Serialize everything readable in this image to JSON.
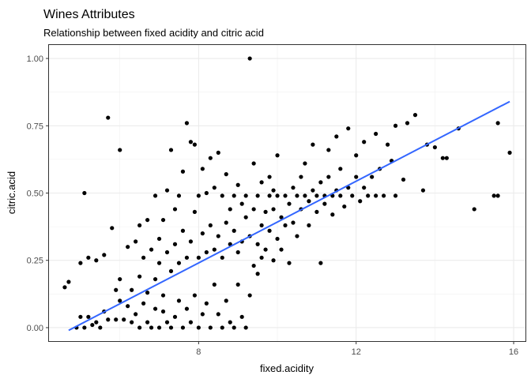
{
  "chart_data": {
    "type": "scatter",
    "title": "Wines Attributes",
    "subtitle": "Relationship between fixed acidity and citric acid",
    "xlabel": "fixed.acidity",
    "ylabel": "citric.acid",
    "xlim": [
      4.2,
      16.3
    ],
    "ylim": [
      -0.05,
      1.05
    ],
    "x_ticks": [
      8,
      12,
      16
    ],
    "y_ticks": [
      0.0,
      0.25,
      0.5,
      0.75,
      1.0
    ],
    "x_tick_labels": [
      "8",
      "12",
      "16"
    ],
    "y_tick_labels": [
      "0.00",
      "0.25",
      "0.50",
      "0.75",
      "1.00"
    ],
    "grid": true,
    "point_color": "#000000",
    "trend_color": "#3366ff",
    "trend_line": {
      "x": [
        4.7,
        15.9
      ],
      "y": [
        -0.01,
        0.84
      ]
    },
    "points": [
      [
        4.6,
        0.15
      ],
      [
        4.7,
        0.17
      ],
      [
        4.9,
        0.0
      ],
      [
        5.0,
        0.04
      ],
      [
        5.0,
        0.24
      ],
      [
        5.1,
        0.5
      ],
      [
        5.1,
        0.0
      ],
      [
        5.2,
        0.04
      ],
      [
        5.2,
        0.26
      ],
      [
        5.3,
        0.01
      ],
      [
        5.4,
        0.02
      ],
      [
        5.4,
        0.25
      ],
      [
        5.5,
        0.0
      ],
      [
        5.6,
        0.27
      ],
      [
        5.6,
        0.06
      ],
      [
        5.7,
        0.78
      ],
      [
        5.7,
        0.03
      ],
      [
        5.8,
        0.37
      ],
      [
        5.9,
        0.03
      ],
      [
        5.9,
        0.14
      ],
      [
        6.0,
        0.66
      ],
      [
        6.0,
        0.1
      ],
      [
        6.0,
        0.18
      ],
      [
        6.1,
        0.03
      ],
      [
        6.2,
        0.08
      ],
      [
        6.2,
        0.3
      ],
      [
        6.3,
        0.02
      ],
      [
        6.3,
        0.14
      ],
      [
        6.4,
        0.05
      ],
      [
        6.4,
        0.32
      ],
      [
        6.5,
        0.0
      ],
      [
        6.5,
        0.19
      ],
      [
        6.5,
        0.38
      ],
      [
        6.6,
        0.09
      ],
      [
        6.6,
        0.26
      ],
      [
        6.7,
        0.02
      ],
      [
        6.7,
        0.13
      ],
      [
        6.7,
        0.4
      ],
      [
        6.8,
        0.0
      ],
      [
        6.8,
        0.29
      ],
      [
        6.9,
        0.07
      ],
      [
        6.9,
        0.18
      ],
      [
        6.9,
        0.49
      ],
      [
        7.0,
        0.0
      ],
      [
        7.0,
        0.24
      ],
      [
        7.0,
        0.33
      ],
      [
        7.1,
        0.06
      ],
      [
        7.1,
        0.12
      ],
      [
        7.1,
        0.4
      ],
      [
        7.2,
        0.02
      ],
      [
        7.2,
        0.28
      ],
      [
        7.2,
        0.51
      ],
      [
        7.3,
        0.0
      ],
      [
        7.3,
        0.21
      ],
      [
        7.3,
        0.66
      ],
      [
        7.4,
        0.04
      ],
      [
        7.4,
        0.31
      ],
      [
        7.4,
        0.44
      ],
      [
        7.5,
        0.1
      ],
      [
        7.5,
        0.24
      ],
      [
        7.5,
        0.49
      ],
      [
        7.6,
        0.0
      ],
      [
        7.6,
        0.36
      ],
      [
        7.6,
        0.58
      ],
      [
        7.7,
        0.07
      ],
      [
        7.7,
        0.26
      ],
      [
        7.7,
        0.76
      ],
      [
        7.8,
        0.02
      ],
      [
        7.8,
        0.32
      ],
      [
        7.8,
        0.69
      ],
      [
        7.9,
        0.12
      ],
      [
        7.9,
        0.43
      ],
      [
        7.9,
        0.68
      ],
      [
        8.0,
        0.0
      ],
      [
        8.0,
        0.26
      ],
      [
        8.0,
        0.49
      ],
      [
        8.1,
        0.05
      ],
      [
        8.1,
        0.35
      ],
      [
        8.1,
        0.59
      ],
      [
        8.2,
        0.09
      ],
      [
        8.2,
        0.28
      ],
      [
        8.2,
        0.5
      ],
      [
        8.3,
        0.0
      ],
      [
        8.3,
        0.38
      ],
      [
        8.3,
        0.63
      ],
      [
        8.4,
        0.16
      ],
      [
        8.4,
        0.29
      ],
      [
        8.4,
        0.52
      ],
      [
        8.5,
        0.05
      ],
      [
        8.5,
        0.34
      ],
      [
        8.5,
        0.65
      ],
      [
        8.6,
        0.0
      ],
      [
        8.6,
        0.26
      ],
      [
        8.6,
        0.49
      ],
      [
        8.7,
        0.1
      ],
      [
        8.7,
        0.39
      ],
      [
        8.7,
        0.57
      ],
      [
        8.8,
        0.02
      ],
      [
        8.8,
        0.31
      ],
      [
        8.8,
        0.44
      ],
      [
        8.9,
        0.0
      ],
      [
        8.9,
        0.36
      ],
      [
        8.9,
        0.49
      ],
      [
        9.0,
        0.16
      ],
      [
        9.0,
        0.28
      ],
      [
        9.0,
        0.53
      ],
      [
        9.1,
        0.04
      ],
      [
        9.1,
        0.32
      ],
      [
        9.1,
        0.46
      ],
      [
        9.2,
        0.0
      ],
      [
        9.2,
        0.41
      ],
      [
        9.2,
        0.49
      ],
      [
        9.3,
        0.12
      ],
      [
        9.3,
        0.34
      ],
      [
        9.3,
        1.0
      ],
      [
        9.4,
        0.23
      ],
      [
        9.4,
        0.44
      ],
      [
        9.4,
        0.61
      ],
      [
        9.5,
        0.31
      ],
      [
        9.5,
        0.49
      ],
      [
        9.5,
        0.2
      ],
      [
        9.6,
        0.38
      ],
      [
        9.6,
        0.54
      ],
      [
        9.6,
        0.26
      ],
      [
        9.7,
        0.43
      ],
      [
        9.7,
        0.29
      ],
      [
        9.8,
        0.49
      ],
      [
        9.8,
        0.36
      ],
      [
        9.8,
        0.56
      ],
      [
        9.9,
        0.25
      ],
      [
        9.9,
        0.44
      ],
      [
        9.9,
        0.51
      ],
      [
        10.0,
        0.33
      ],
      [
        10.0,
        0.49
      ],
      [
        10.0,
        0.64
      ],
      [
        10.1,
        0.41
      ],
      [
        10.1,
        0.29
      ],
      [
        10.2,
        0.49
      ],
      [
        10.2,
        0.38
      ],
      [
        10.3,
        0.24
      ],
      [
        10.3,
        0.46
      ],
      [
        10.4,
        0.52
      ],
      [
        10.4,
        0.39
      ],
      [
        10.5,
        0.49
      ],
      [
        10.5,
        0.34
      ],
      [
        10.6,
        0.44
      ],
      [
        10.6,
        0.56
      ],
      [
        10.7,
        0.49
      ],
      [
        10.7,
        0.61
      ],
      [
        10.8,
        0.47
      ],
      [
        10.8,
        0.38
      ],
      [
        10.9,
        0.51
      ],
      [
        10.9,
        0.68
      ],
      [
        11.0,
        0.49
      ],
      [
        11.0,
        0.43
      ],
      [
        11.1,
        0.54
      ],
      [
        11.1,
        0.24
      ],
      [
        11.2,
        0.49
      ],
      [
        11.2,
        0.46
      ],
      [
        11.3,
        0.56
      ],
      [
        11.3,
        0.66
      ],
      [
        11.4,
        0.49
      ],
      [
        11.4,
        0.42
      ],
      [
        11.5,
        0.51
      ],
      [
        11.5,
        0.71
      ],
      [
        11.6,
        0.49
      ],
      [
        11.6,
        0.59
      ],
      [
        11.7,
        0.45
      ],
      [
        11.8,
        0.52
      ],
      [
        11.8,
        0.74
      ],
      [
        11.9,
        0.49
      ],
      [
        12.0,
        0.56
      ],
      [
        12.0,
        0.64
      ],
      [
        12.1,
        0.47
      ],
      [
        12.2,
        0.52
      ],
      [
        12.2,
        0.69
      ],
      [
        12.3,
        0.49
      ],
      [
        12.4,
        0.56
      ],
      [
        12.5,
        0.72
      ],
      [
        12.5,
        0.49
      ],
      [
        12.6,
        0.59
      ],
      [
        12.7,
        0.49
      ],
      [
        12.8,
        0.68
      ],
      [
        12.9,
        0.62
      ],
      [
        13.0,
        0.49
      ],
      [
        13.0,
        0.75
      ],
      [
        13.2,
        0.55
      ],
      [
        13.3,
        0.76
      ],
      [
        13.5,
        0.79
      ],
      [
        13.7,
        0.51
      ],
      [
        13.8,
        0.68
      ],
      [
        14.0,
        0.67
      ],
      [
        14.2,
        0.63
      ],
      [
        14.3,
        0.63
      ],
      [
        14.6,
        0.74
      ],
      [
        15.0,
        0.44
      ],
      [
        15.5,
        0.49
      ],
      [
        15.6,
        0.49
      ],
      [
        15.6,
        0.76
      ],
      [
        15.9,
        0.65
      ]
    ]
  }
}
